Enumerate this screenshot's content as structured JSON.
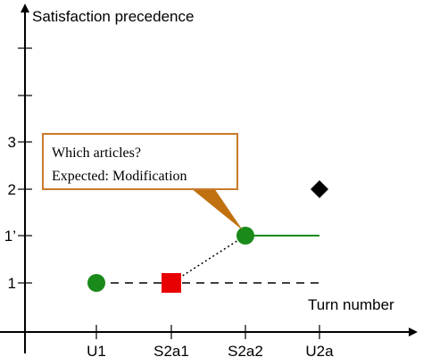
{
  "y_axis": {
    "label": "Satisfaction precedence",
    "ticks": [
      "1",
      "1’",
      "2",
      "3"
    ]
  },
  "x_axis": {
    "label": "Turn number",
    "ticks": [
      "U1",
      "S2a1",
      "S2a2",
      "U2a"
    ]
  },
  "callout": {
    "lines": [
      "Which articles?",
      "Expected: Modification"
    ]
  }
}
